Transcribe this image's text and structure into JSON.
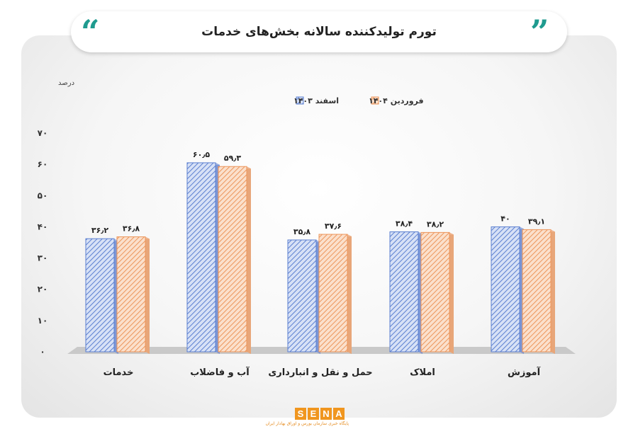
{
  "header": {
    "title": "تورم تولیدکننده سالانه بخش‌های خدمات"
  },
  "logo": {
    "letters": [
      "S",
      "E",
      "N",
      "A"
    ],
    "subtitle": "پایگاه خبری سازمان بورس و اوراق بهادار ایران",
    "color": "#f0961f"
  },
  "chart_data": {
    "type": "bar",
    "ylabel": "درصد",
    "ylim": [
      0,
      70
    ],
    "yticks": [
      "۰",
      "۱۰",
      "۲۰",
      "۳۰",
      "۴۰",
      "۵۰",
      "۶۰",
      "۷۰"
    ],
    "legend_position": "top-center",
    "categories": [
      "خدمات",
      "آب و فاضلاب",
      "حمل و نقل و انبارداری",
      "املاک",
      "آموزش"
    ],
    "series": [
      {
        "name": "اسفند ۱۴۰۳",
        "color": "#5b7fd0",
        "values": [
          36.2,
          60.5,
          35.8,
          38.4,
          40.0
        ],
        "labels": [
          "۳۶٫۲",
          "۶۰٫۵",
          "۳۵٫۸",
          "۳۸٫۴",
          "۴۰"
        ]
      },
      {
        "name": "فروردین ۱۴۰۴",
        "color": "#ec955a",
        "values": [
          36.8,
          59.3,
          37.6,
          38.2,
          39.1
        ],
        "labels": [
          "۳۶٫۸",
          "۵۹٫۳",
          "۳۷٫۶",
          "۳۸٫۲",
          "۳۹٫۱"
        ]
      }
    ]
  }
}
